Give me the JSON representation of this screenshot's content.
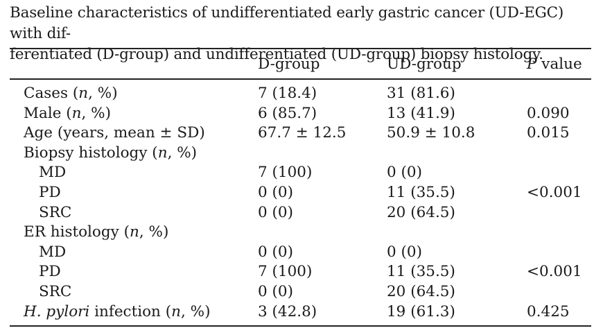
{
  "caption": "Baseline characteristics of undifferentiated early gastric cancer (UD-EGC) with differentiated (D-group) and undifferentiated (UD-group) biopsy histology.",
  "caption_line1": "Baseline characteristics of undifferentiated early gastric cancer (UD-EGC) with dif-",
  "caption_line2": "ferentiated (D-group) and undifferentiated (UD-group) biopsy histology.",
  "headers": {
    "col1": "D-group",
    "col2": "UD-group",
    "col3_italic": "P",
    "col3_rest": " value"
  },
  "rows": [
    {
      "label": "Cases (",
      "label_it": "n",
      "label_end": ", %)",
      "d": "7 (18.4)",
      "ud": "31 (81.6)",
      "p": ""
    },
    {
      "label": "Male (",
      "label_it": "n",
      "label_end": ", %)",
      "d": "6 (85.7)",
      "ud": "13 (41.9)",
      "p": "0.090"
    },
    {
      "label": "Age (years, mean ± SD)",
      "label_it": "",
      "label_end": "",
      "d": "67.7 ± 12.5",
      "ud": "50.9 ± 10.8",
      "p": "0.015"
    },
    {
      "label": "Biopsy histology (",
      "label_it": "n",
      "label_end": ", %)",
      "d": "",
      "ud": "",
      "p": ""
    },
    {
      "label": "MD",
      "label_it": "",
      "label_end": "",
      "d": "7 (100)",
      "ud": "0 (0)",
      "p": "",
      "indent": true
    },
    {
      "label": "PD",
      "label_it": "",
      "label_end": "",
      "d": "0 (0)",
      "ud": "11 (35.5)",
      "p": "<0.001",
      "indent": true
    },
    {
      "label": "SRC",
      "label_it": "",
      "label_end": "",
      "d": "0 (0)",
      "ud": "20 (64.5)",
      "p": "",
      "indent": true
    },
    {
      "label": "ER histology (",
      "label_it": "n",
      "label_end": ", %)",
      "d": "",
      "ud": "",
      "p": ""
    },
    {
      "label": "MD",
      "label_it": "",
      "label_end": "",
      "d": "0 (0)",
      "ud": "0 (0)",
      "p": "",
      "indent": true
    },
    {
      "label": "PD",
      "label_it": "",
      "label_end": "",
      "d": "7 (100)",
      "ud": "11 (35.5)",
      "p": "<0.001",
      "indent": true
    },
    {
      "label": "SRC",
      "label_it": "",
      "label_end": "",
      "d": "0 (0)",
      "ud": "20 (64.5)",
      "p": "",
      "indent": true
    },
    {
      "label_pre_it": "H. pylori",
      "label": " infection (",
      "label_it": "n",
      "label_end": ", %)",
      "d": "3 (42.8)",
      "ud": "19 (61.3)",
      "p": "0.425"
    }
  ]
}
